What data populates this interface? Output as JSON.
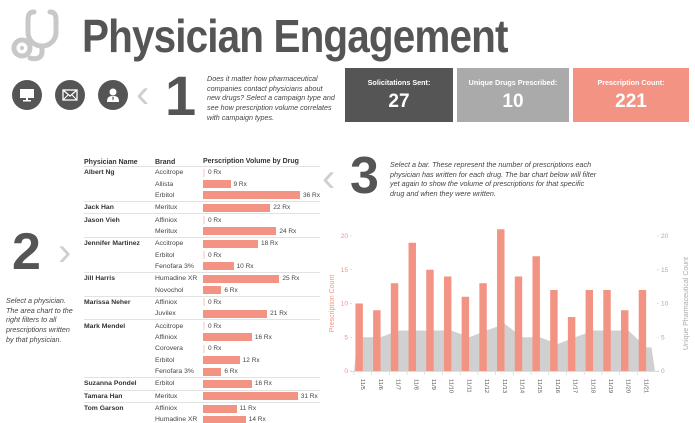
{
  "header": {
    "title": "Physician Engagement",
    "logo_icon": "stethoscope-icon"
  },
  "campaign_types": [
    {
      "name": "web",
      "icon": "monitor-icon"
    },
    {
      "name": "email",
      "icon": "envelope-icon"
    },
    {
      "name": "rep-visit",
      "icon": "person-icon"
    }
  ],
  "steps": [
    {
      "number": "1",
      "text": "Does it matter how pharmaceutical companies contact physicians about new drugs? Select a campaign type and see how prescription volume correlates with campaign types."
    },
    {
      "number": "2",
      "text": "Select a physician. The area chart to the right filters to all prescriptions written by that physician."
    },
    {
      "number": "3",
      "text": "Select a bar. These represent the number of prescriptions each physician has written for each drug. The bar chart below will filter yet again to show the volume of prescriptions for that specific drug and when they were written."
    }
  ],
  "kpis": [
    {
      "label": "Solicitations Sent:",
      "value": "27",
      "color": "#555555"
    },
    {
      "label": "Unique Drugs Prescribed:",
      "value": "10",
      "color": "#a9aaa9"
    },
    {
      "label": "Prescription Count:",
      "value": "221",
      "color": "#f29383"
    }
  ],
  "table": {
    "headers": {
      "name": "Physician Name",
      "brand": "Brand",
      "volume": "Perscription Volume by Drug"
    },
    "unit": "Rx",
    "max_value": 36,
    "physicians": [
      {
        "name": "Albert Ng",
        "rows": [
          {
            "brand": "Accitrope",
            "value": 0
          },
          {
            "brand": "Allista",
            "value": 9
          },
          {
            "brand": "Erbitol",
            "value": 36
          }
        ]
      },
      {
        "name": "Jack Han",
        "rows": [
          {
            "brand": "Meritux",
            "value": 22
          }
        ]
      },
      {
        "name": "Jason Vieh",
        "rows": [
          {
            "brand": "Affiniox",
            "value": 0
          },
          {
            "brand": "Meritux",
            "value": 24
          }
        ]
      },
      {
        "name": "Jennifer Martinez",
        "rows": [
          {
            "brand": "Accitrope",
            "value": 18
          },
          {
            "brand": "Erbitol",
            "value": 0
          },
          {
            "brand": "Fenofara 3%",
            "value": 10
          }
        ]
      },
      {
        "name": "Jill Harris",
        "rows": [
          {
            "brand": "Humadine XR",
            "value": 25
          },
          {
            "brand": "Novochol",
            "value": 6
          }
        ]
      },
      {
        "name": "Marissa Neher",
        "rows": [
          {
            "brand": "Affiniox",
            "value": 0
          },
          {
            "brand": "Juvilex",
            "value": 21
          }
        ]
      },
      {
        "name": "Mark Mendel",
        "rows": [
          {
            "brand": "Accitrope",
            "value": 0
          },
          {
            "brand": "Affiniox",
            "value": 16
          },
          {
            "brand": "Corovera",
            "value": 0
          },
          {
            "brand": "Erbitol",
            "value": 12
          },
          {
            "brand": "Fenofara 3%",
            "value": 6
          }
        ]
      },
      {
        "name": "Suzanna Pondel",
        "rows": [
          {
            "brand": "Erbitol",
            "value": 16
          }
        ]
      },
      {
        "name": "Tamara Han",
        "rows": [
          {
            "brand": "Meritux",
            "value": 31
          }
        ]
      },
      {
        "name": "Tom Garson",
        "rows": [
          {
            "brand": "Affiniox",
            "value": 11
          },
          {
            "brand": "Humadine XR",
            "value": 14
          }
        ]
      }
    ]
  },
  "chart_data": {
    "type": "bar",
    "categories": [
      "11/5",
      "11/6",
      "11/7",
      "11/8",
      "11/9",
      "11/10",
      "11/11",
      "11/12",
      "11/13",
      "11/14",
      "11/15",
      "11/16",
      "11/17",
      "11/18",
      "11/19",
      "11/20",
      "11/21"
    ],
    "series": [
      {
        "name": "Prescription Count",
        "type": "bar",
        "axis": "left",
        "color": "#f29383",
        "values": [
          10,
          9,
          13,
          19,
          15,
          14,
          11,
          13,
          21,
          14,
          17,
          12,
          8,
          12,
          12,
          9,
          12
        ]
      },
      {
        "name": "Unique Pharmaceutical Count",
        "type": "area",
        "axis": "right",
        "color": "#d0d0d0",
        "values": [
          5,
          5,
          6,
          6,
          6,
          6,
          5,
          6,
          7,
          5,
          5,
          4,
          5,
          6,
          6,
          6,
          3.5
        ]
      }
    ],
    "ylabel": "Prescription Count",
    "y2label": "Unique Pharmaceutical Count",
    "ylim": [
      0,
      20
    ],
    "y2lim": [
      0,
      20
    ],
    "yticks": [
      0,
      5,
      10,
      15,
      20
    ],
    "y2ticks": [
      0,
      5,
      10,
      15,
      20
    ],
    "grid": false
  }
}
